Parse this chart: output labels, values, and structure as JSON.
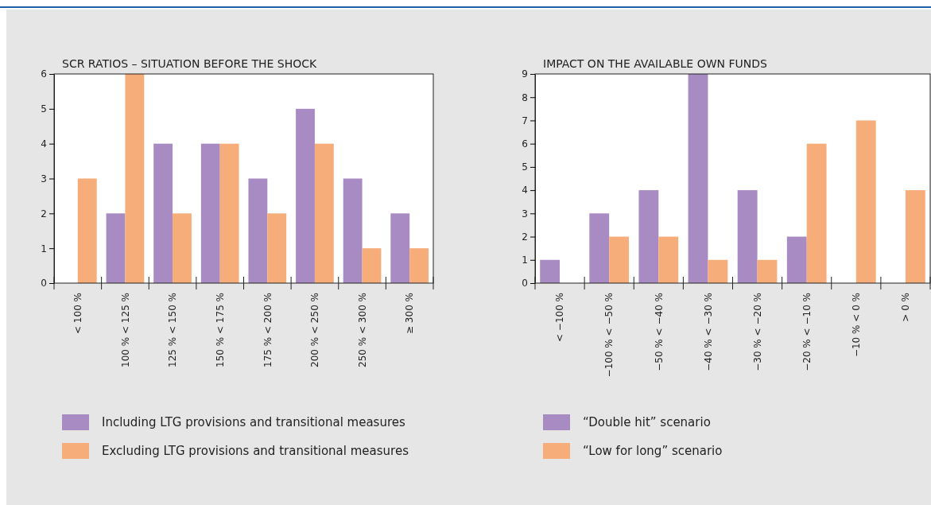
{
  "chart_data": [
    {
      "type": "bar",
      "title": "SCR RATIOS – SITUATION BEFORE THE SHOCK",
      "categories": [
        "< 100 %",
        "100 % < 125 %",
        "125 % < 150 %",
        "150 % < 175 %",
        "175 % < 200 %",
        "200 % < 250 %",
        "250 % < 300 %",
        "≥ 300 %"
      ],
      "series": [
        {
          "name": "Including LTG provisions and transitional measures",
          "color": "#a98bc4",
          "values": [
            0,
            2,
            4,
            4,
            3,
            5,
            3,
            2
          ]
        },
        {
          "name": "Excluding LTG provisions and transitional measures",
          "color": "#f7ad79",
          "values": [
            3,
            6,
            2,
            4,
            2,
            4,
            1,
            1
          ]
        }
      ],
      "ylim": [
        0,
        6
      ],
      "yticks": [
        0,
        1,
        2,
        3,
        4,
        5,
        6
      ],
      "grid": false,
      "legend": "bottom"
    },
    {
      "type": "bar",
      "title": "IMPACT ON THE AVAILABLE OWN FUNDS",
      "categories": [
        "< −100 %",
        "−100 % < −50 %",
        "−50 % < −40 %",
        "−40 % < −30 %",
        "−30 % < −20 %",
        "−20 % < −10 %",
        "−10 % < 0 %",
        "> 0 %"
      ],
      "series": [
        {
          "name": "“Double hit” scenario",
          "color": "#a98bc4",
          "values": [
            1,
            3,
            4,
            9,
            4,
            2,
            0,
            0
          ]
        },
        {
          "name": "“Low for long” scenario",
          "color": "#f7ad79",
          "values": [
            0,
            2,
            2,
            1,
            1,
            6,
            7,
            4
          ]
        }
      ],
      "ylim": [
        0,
        9
      ],
      "yticks": [
        0,
        1,
        2,
        3,
        4,
        5,
        6,
        7,
        8,
        9
      ],
      "grid": false,
      "legend": "bottom"
    }
  ]
}
